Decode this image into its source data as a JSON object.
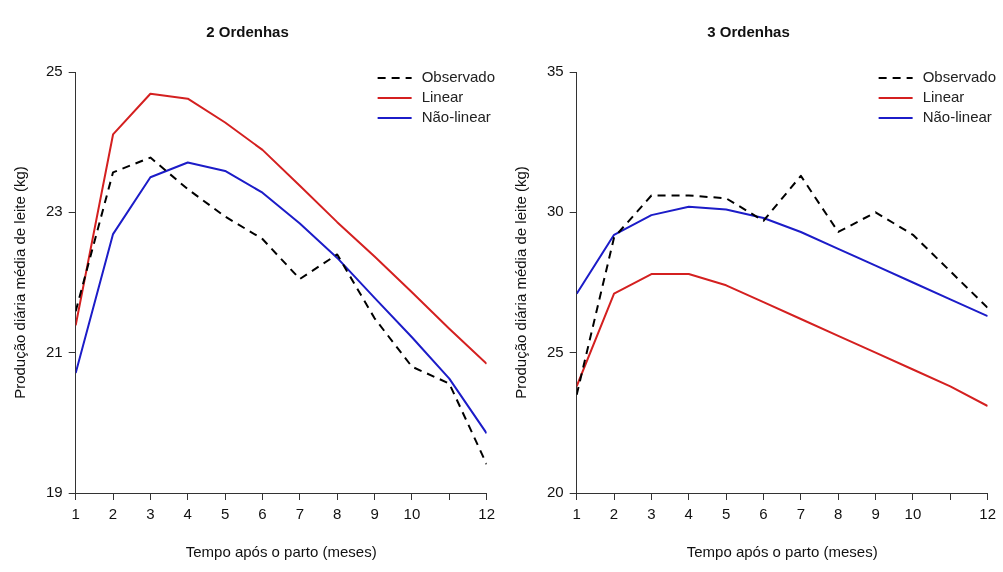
{
  "chart_data": [
    {
      "type": "line",
      "title": "2 Ordenhas",
      "xlabel": "Tempo após o parto (meses)",
      "ylabel": "Produção diária média de leite (kg)",
      "x": [
        1,
        2,
        3,
        4,
        5,
        6,
        7,
        8,
        9,
        10,
        11,
        12
      ],
      "xlim": [
        1,
        12
      ],
      "xticks": [
        1,
        2,
        3,
        4,
        5,
        6,
        7,
        8,
        9,
        10,
        {
          "value": 11,
          "label": null
        },
        12
      ],
      "ylim": [
        19,
        25
      ],
      "yticks": [
        19,
        21,
        23,
        25
      ],
      "grid": false,
      "legend": "top right",
      "marker": "none",
      "series": [
        {
          "name": "Observado",
          "color": "#000000",
          "line_style": "dashed",
          "values": [
            21.59,
            23.57,
            23.78,
            23.33,
            22.94,
            22.62,
            22.05,
            22.4,
            21.49,
            20.8,
            20.56,
            19.41
          ]
        },
        {
          "name": "Linear",
          "color": "#d42020",
          "line_style": "solid",
          "values": [
            21.39,
            24.11,
            24.69,
            24.62,
            24.28,
            23.89,
            23.38,
            22.86,
            22.37,
            21.86,
            21.34,
            20.84
          ]
        },
        {
          "name": "Não-linear",
          "color": "#1c1cc8",
          "line_style": "solid",
          "values": [
            20.71,
            22.69,
            23.5,
            23.71,
            23.59,
            23.28,
            22.84,
            22.35,
            21.78,
            21.22,
            20.63,
            19.85
          ]
        }
      ]
    },
    {
      "type": "line",
      "title": "3 Ordenhas",
      "xlabel": "Tempo após o parto (meses)",
      "ylabel": "Produção diária média de leite (kg)",
      "x": [
        1,
        2,
        3,
        4,
        5,
        6,
        7,
        8,
        9,
        10,
        11,
        12
      ],
      "xlim": [
        1,
        12
      ],
      "xticks": [
        1,
        2,
        3,
        4,
        5,
        6,
        7,
        8,
        9,
        10,
        {
          "value": 11,
          "label": null
        },
        12
      ],
      "ylim": [
        20,
        35
      ],
      "yticks": [
        20,
        25,
        30,
        35
      ],
      "grid": false,
      "legend": "top right",
      "marker": "none",
      "series": [
        {
          "name": "Observado",
          "color": "#000000",
          "line_style": "dashed",
          "values": [
            23.5,
            29.1,
            30.6,
            30.6,
            30.5,
            29.7,
            31.3,
            29.3,
            30,
            29.2,
            27.9,
            26.6
          ]
        },
        {
          "name": "Linear",
          "color": "#d42020",
          "line_style": "solid",
          "values": [
            23.8,
            27.1,
            27.8,
            27.8,
            27.4,
            26.8,
            26.2,
            25.6,
            25,
            24.4,
            23.8,
            23.1
          ]
        },
        {
          "name": "Não-linear",
          "color": "#1c1cc8",
          "line_style": "solid",
          "values": [
            27.1,
            29.2,
            29.9,
            30.2,
            30.1,
            29.8,
            29.3,
            28.7,
            28.1,
            27.5,
            26.9,
            26.3
          ]
        }
      ]
    }
  ]
}
